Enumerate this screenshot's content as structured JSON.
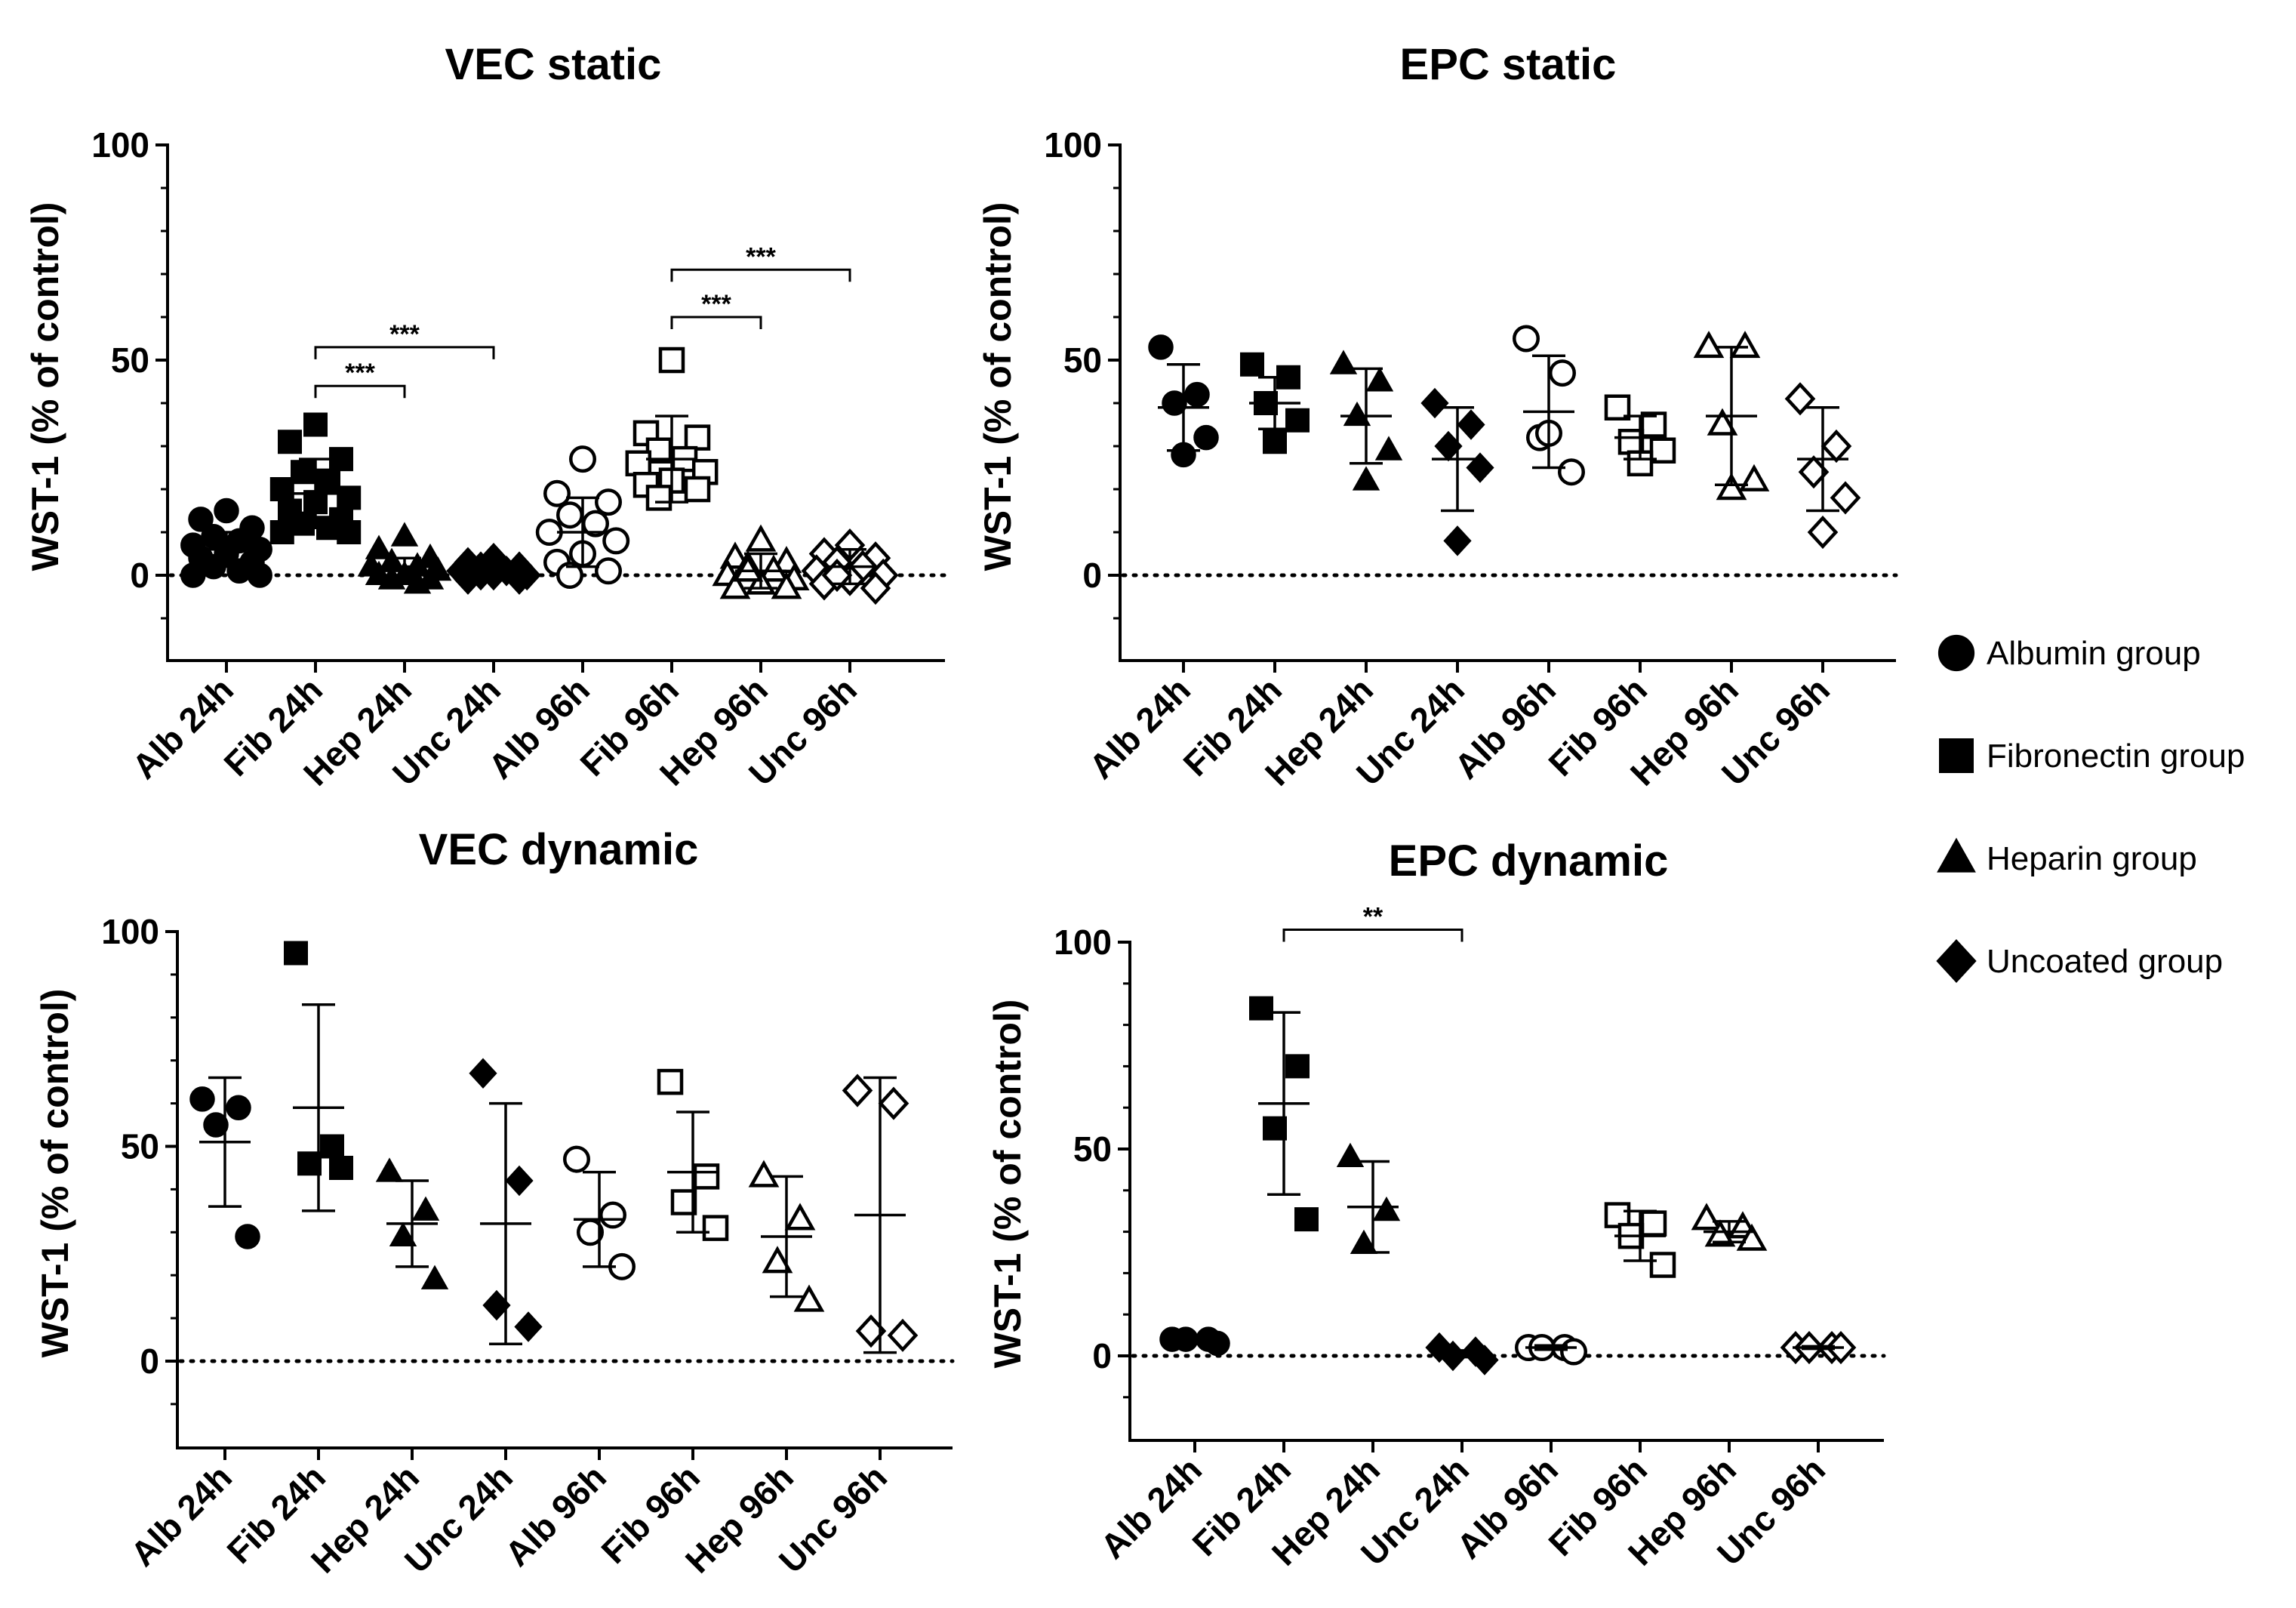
{
  "colors": {
    "ink": "#000000",
    "background": "#ffffff"
  },
  "legend": {
    "items": [
      {
        "label": "Albumin group",
        "shape": "circle"
      },
      {
        "label": "Fibronectin group",
        "shape": "square"
      },
      {
        "label": "Heparin group",
        "shape": "triangle"
      },
      {
        "label": "Uncoated group",
        "shape": "diamond"
      }
    ]
  },
  "chart_data": [
    {
      "type": "scatter",
      "title": "VEC static",
      "ylabel": "WST-1 (% of control)",
      "ylim": [
        -20,
        100
      ],
      "yticks": [
        "0",
        "50",
        "100"
      ],
      "categories": [
        "Alb 24h",
        "Fib 24h",
        "Hep 24h",
        "Unc 24h",
        "Alb 96h",
        "Fib 96h",
        "Hep 96h",
        "Unc 96h"
      ],
      "groups": [
        {
          "shape": "circle",
          "filled": true,
          "mean": 6,
          "sd": 4,
          "points": [
            15,
            13,
            11,
            9,
            8,
            7,
            6,
            5,
            4,
            3,
            2,
            1,
            0,
            0
          ]
        },
        {
          "shape": "square",
          "filled": true,
          "mean": 19,
          "sd": 8,
          "points": [
            35,
            31,
            27,
            24,
            22,
            20,
            18,
            17,
            15,
            13,
            12,
            11,
            10,
            10
          ]
        },
        {
          "shape": "triangle",
          "filled": true,
          "mean": 2,
          "sd": 2,
          "points": [
            9,
            6,
            4,
            3,
            2,
            2,
            1,
            0,
            0,
            -1,
            -1,
            -2
          ]
        },
        {
          "shape": "diamond",
          "filled": true,
          "mean": 1,
          "sd": 1.5,
          "points": [
            4,
            3,
            2,
            2,
            1,
            1,
            0,
            0,
            -1,
            -1,
            0,
            1
          ]
        },
        {
          "shape": "circle",
          "filled": false,
          "mean": 10,
          "sd": 8,
          "points": [
            27,
            19,
            17,
            14,
            12,
            10,
            8,
            5,
            3,
            1,
            0
          ]
        },
        {
          "shape": "square",
          "filled": false,
          "mean": 27,
          "sd": 10,
          "points": [
            50,
            33,
            32,
            29,
            27,
            26,
            24,
            22,
            21,
            20,
            18
          ]
        },
        {
          "shape": "triangle",
          "filled": false,
          "mean": 1,
          "sd": 4,
          "points": [
            8,
            4,
            3,
            2,
            1,
            0,
            -1,
            -2,
            -3,
            -3,
            1
          ]
        },
        {
          "shape": "diamond",
          "filled": false,
          "mean": 2,
          "sd": 4,
          "points": [
            7,
            5,
            4,
            3,
            2,
            1,
            0,
            -1,
            -2,
            -3,
            0
          ]
        }
      ],
      "significance": [
        {
          "from": 1,
          "to": 2,
          "y": 44,
          "label": "***"
        },
        {
          "from": 1,
          "to": 3,
          "y": 53,
          "label": "***"
        },
        {
          "from": 5,
          "to": 6,
          "y": 60,
          "label": "***"
        },
        {
          "from": 5,
          "to": 7,
          "y": 71,
          "label": "***"
        }
      ]
    },
    {
      "type": "scatter",
      "title": "EPC static",
      "ylabel": "WST-1 (% of control)",
      "ylim": [
        -20,
        100
      ],
      "yticks": [
        "0",
        "50",
        "100"
      ],
      "categories": [
        "Alb 24h",
        "Fib 24h",
        "Hep 24h",
        "Unc 24h",
        "Alb 96h",
        "Fib 96h",
        "Hep 96h",
        "Unc 96h"
      ],
      "groups": [
        {
          "shape": "circle",
          "filled": true,
          "mean": 39,
          "sd": 10,
          "points": [
            53,
            42,
            40,
            32,
            28
          ]
        },
        {
          "shape": "square",
          "filled": true,
          "mean": 40,
          "sd": 6,
          "points": [
            49,
            46,
            40,
            36,
            31
          ]
        },
        {
          "shape": "triangle",
          "filled": true,
          "mean": 37,
          "sd": 11,
          "points": [
            49,
            45,
            37,
            29,
            22
          ]
        },
        {
          "shape": "diamond",
          "filled": true,
          "mean": 27,
          "sd": 12,
          "points": [
            40,
            35,
            30,
            25,
            8
          ]
        },
        {
          "shape": "circle",
          "filled": false,
          "mean": 38,
          "sd": 13,
          "points": [
            55,
            47,
            32,
            24,
            33
          ]
        },
        {
          "shape": "square",
          "filled": false,
          "mean": 32,
          "sd": 5,
          "points": [
            39,
            35,
            31,
            29,
            26
          ]
        },
        {
          "shape": "triangle",
          "filled": false,
          "mean": 37,
          "sd": 16,
          "points": [
            53,
            53,
            35,
            22,
            20
          ]
        },
        {
          "shape": "diamond",
          "filled": false,
          "mean": 27,
          "sd": 12,
          "points": [
            41,
            30,
            24,
            18,
            10
          ]
        }
      ],
      "significance": []
    },
    {
      "type": "scatter",
      "title": "VEC dynamic",
      "ylabel": "WST-1 (% of control)",
      "ylim": [
        -20,
        100
      ],
      "yticks": [
        "0",
        "50",
        "100"
      ],
      "categories": [
        "Alb 24h",
        "Fib 24h",
        "Hep 24h",
        "Unc 24h",
        "Alb 96h",
        "Fib 96h",
        "Hep 96h",
        "Unc 96h"
      ],
      "groups": [
        {
          "shape": "circle",
          "filled": true,
          "mean": 51,
          "sd": 15,
          "points": [
            61,
            59,
            55,
            29
          ]
        },
        {
          "shape": "square",
          "filled": true,
          "mean": 59,
          "sd": 24,
          "points": [
            95,
            50,
            46,
            45
          ]
        },
        {
          "shape": "triangle",
          "filled": true,
          "mean": 32,
          "sd": 10,
          "points": [
            44,
            35,
            29,
            19
          ]
        },
        {
          "shape": "diamond",
          "filled": true,
          "mean": 32,
          "sd": 28,
          "points": [
            67,
            42,
            13,
            8
          ]
        },
        {
          "shape": "circle",
          "filled": false,
          "mean": 33,
          "sd": 11,
          "points": [
            47,
            34,
            30,
            22
          ]
        },
        {
          "shape": "square",
          "filled": false,
          "mean": 44,
          "sd": 14,
          "points": [
            65,
            43,
            37,
            31
          ]
        },
        {
          "shape": "triangle",
          "filled": false,
          "mean": 29,
          "sd": 14,
          "points": [
            43,
            33,
            23,
            14
          ]
        },
        {
          "shape": "diamond",
          "filled": false,
          "mean": 34,
          "sd": 32,
          "points": [
            63,
            60,
            7,
            6
          ]
        }
      ],
      "significance": []
    },
    {
      "type": "scatter",
      "title": "EPC dynamic",
      "ylabel": "WST-1 (% of control)",
      "ylim": [
        -20,
        100
      ],
      "yticks": [
        "0",
        "50",
        "100"
      ],
      "categories": [
        "Alb 24h",
        "Fib 24h",
        "Hep 24h",
        "Unc 24h",
        "Alb 96h",
        "Fib 96h",
        "Hep 96h",
        "Unc 96h"
      ],
      "groups": [
        {
          "shape": "circle",
          "filled": true,
          "mean": 4,
          "sd": 0.7,
          "points": [
            4,
            4,
            4,
            3
          ]
        },
        {
          "shape": "square",
          "filled": true,
          "mean": 61,
          "sd": 22,
          "points": [
            84,
            70,
            55,
            33
          ]
        },
        {
          "shape": "triangle",
          "filled": true,
          "mean": 36,
          "sd": 11,
          "points": [
            48,
            35,
            27
          ]
        },
        {
          "shape": "diamond",
          "filled": true,
          "mean": 0.5,
          "sd": 0.8,
          "points": [
            2,
            1,
            0,
            -1
          ]
        },
        {
          "shape": "circle",
          "filled": false,
          "mean": 2,
          "sd": 0.5,
          "points": [
            2,
            2,
            2,
            1
          ]
        },
        {
          "shape": "square",
          "filled": false,
          "mean": 29,
          "sd": 6,
          "points": [
            34,
            32,
            29,
            22
          ]
        },
        {
          "shape": "triangle",
          "filled": false,
          "mean": 30,
          "sd": 2.5,
          "points": [
            33,
            31,
            29,
            28
          ]
        },
        {
          "shape": "diamond",
          "filled": false,
          "mean": 2,
          "sd": 0.3,
          "points": [
            2,
            2,
            2,
            2
          ]
        }
      ],
      "significance": [
        {
          "from": 1,
          "to": 3,
          "y": 103,
          "label": "**"
        }
      ]
    }
  ]
}
